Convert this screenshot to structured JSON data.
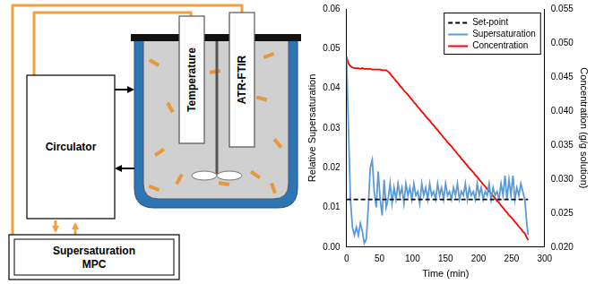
{
  "chart_data": {
    "type": "line",
    "x_label": "Time (min)",
    "y_label": "Relative Supersaturation",
    "y2_label": "Concentration (g/g solution)",
    "x": [
      0,
      3,
      6,
      9,
      12,
      15,
      18,
      21,
      24,
      27,
      30,
      33,
      36,
      39,
      42,
      45,
      48,
      51,
      54,
      57,
      60,
      63,
      66,
      69,
      72,
      75,
      78,
      81,
      84,
      87,
      90,
      93,
      96,
      99,
      102,
      105,
      108,
      111,
      114,
      117,
      120,
      123,
      126,
      129,
      132,
      135,
      138,
      141,
      144,
      147,
      150,
      153,
      156,
      159,
      162,
      165,
      168,
      171,
      174,
      177,
      180,
      183,
      186,
      189,
      192,
      195,
      198,
      201,
      204,
      207,
      210,
      213,
      216,
      219,
      222,
      225,
      228,
      231,
      234,
      237,
      240,
      243,
      246,
      249,
      252,
      255,
      258,
      261,
      264,
      267,
      270,
      273,
      275
    ],
    "xlim": [
      0,
      300
    ],
    "xticks": [
      0,
      50,
      100,
      150,
      200,
      250,
      300
    ],
    "ylim": [
      0,
      0.06
    ],
    "yticks": [
      {
        "value": 0,
        "label": "0.00"
      },
      {
        "value": 0.01,
        "label": "0.01"
      },
      {
        "value": 0.02,
        "label": "0.02"
      },
      {
        "value": 0.03,
        "label": "0.03"
      },
      {
        "value": 0.04,
        "label": "0.04"
      },
      {
        "value": 0.05,
        "label": "0.05"
      },
      {
        "value": 0.06,
        "label": "0.06"
      }
    ],
    "y2lim": [
      0.02,
      0.055
    ],
    "y2ticks": [
      {
        "value": 0.02,
        "label": "0.020"
      },
      {
        "value": 0.025,
        "label": "0.025"
      },
      {
        "value": 0.03,
        "label": "0.030"
      },
      {
        "value": 0.035,
        "label": "0.035"
      },
      {
        "value": 0.04,
        "label": "0.040"
      },
      {
        "value": 0.045,
        "label": "0.045"
      },
      {
        "value": 0.05,
        "label": "0.050"
      },
      {
        "value": 0.055,
        "label": "0.055"
      }
    ],
    "grid": false,
    "legend": "top-right",
    "series": [
      {
        "name": "Set-point",
        "color": "#000000",
        "line_style": "dashed",
        "values": [
          0.012,
          0.012,
          0.012,
          0.012,
          0.012,
          0.012,
          0.012,
          0.012,
          0.012,
          0.012,
          0.012,
          0.012,
          0.012,
          0.012,
          0.012,
          0.012,
          0.012,
          0.012,
          0.012,
          0.012,
          0.012,
          0.012,
          0.012,
          0.012,
          0.012,
          0.012,
          0.012,
          0.012,
          0.012,
          0.012,
          0.012,
          0.012,
          0.012,
          0.012,
          0.012,
          0.012,
          0.012,
          0.012,
          0.012,
          0.012,
          0.012,
          0.012,
          0.012,
          0.012,
          0.012,
          0.012,
          0.012,
          0.012,
          0.012,
          0.012,
          0.012,
          0.012,
          0.012,
          0.012,
          0.012,
          0.012,
          0.012,
          0.012,
          0.012,
          0.012,
          0.012,
          0.012,
          0.012,
          0.012,
          0.012,
          0.012,
          0.012,
          0.012,
          0.012,
          0.012,
          0.012,
          0.012,
          0.012,
          0.012,
          0.012,
          0.012,
          0.012,
          0.012,
          0.012,
          0.012,
          0.012,
          0.012,
          0.012,
          0.012,
          0.012,
          0.012,
          0.012,
          0.012,
          0.012,
          0.012,
          0.012,
          0.012,
          0.012
        ]
      },
      {
        "name": "Supersaturation",
        "color": "#5b9bd5",
        "line_style": "solid",
        "values": [
          0.048,
          0.03,
          0.012,
          0.005,
          0.003,
          0.005,
          0.003,
          0.006,
          0.004,
          0.001,
          0.002,
          0.01,
          0.02,
          0.022,
          0.014,
          0.01,
          0.019,
          0.012,
          0.008,
          0.017,
          0.01,
          0.012,
          0.016,
          0.011,
          0.015,
          0.012,
          0.016,
          0.013,
          0.015,
          0.011,
          0.016,
          0.013,
          0.015,
          0.012,
          0.016,
          0.013,
          0.014,
          0.011,
          0.016,
          0.013,
          0.015,
          0.012,
          0.016,
          0.013,
          0.014,
          0.012,
          0.016,
          0.013,
          0.015,
          0.012,
          0.016,
          0.013,
          0.014,
          0.012,
          0.015,
          0.013,
          0.016,
          0.012,
          0.014,
          0.013,
          0.016,
          0.012,
          0.015,
          0.013,
          0.014,
          0.012,
          0.016,
          0.013,
          0.015,
          0.012,
          0.014,
          0.013,
          0.016,
          0.012,
          0.015,
          0.013,
          0.014,
          0.012,
          0.016,
          0.013,
          0.018,
          0.012,
          0.017,
          0.013,
          0.018,
          0.012,
          0.015,
          0.013,
          0.016,
          0.014,
          0.012,
          0.006,
          0.003
        ]
      },
      {
        "name": "Concentration",
        "color": "#ff0000",
        "line_style": "solid",
        "axis": "y2",
        "values": [
          0.048,
          0.047,
          0.0466,
          0.0464,
          0.0463,
          0.0463,
          0.0463,
          0.0462,
          0.0463,
          0.0462,
          0.0462,
          0.0462,
          0.0462,
          0.0461,
          0.0461,
          0.0461,
          0.0461,
          0.0461,
          0.046,
          0.046,
          0.046,
          0.0458,
          0.0455,
          0.0451,
          0.0448,
          0.0444,
          0.0441,
          0.0437,
          0.0434,
          0.043,
          0.0427,
          0.0424,
          0.042,
          0.0417,
          0.0413,
          0.041,
          0.0406,
          0.0403,
          0.0399,
          0.0396,
          0.0392,
          0.0389,
          0.0386,
          0.0382,
          0.0379,
          0.0375,
          0.0372,
          0.0368,
          0.0365,
          0.0361,
          0.0358,
          0.0354,
          0.0351,
          0.0348,
          0.0344,
          0.0341,
          0.0337,
          0.0334,
          0.033,
          0.0327,
          0.0323,
          0.032,
          0.0316,
          0.0313,
          0.031,
          0.0306,
          0.0303,
          0.0299,
          0.0296,
          0.0292,
          0.0289,
          0.0285,
          0.0282,
          0.0279,
          0.0275,
          0.0272,
          0.0268,
          0.0265,
          0.0261,
          0.0258,
          0.0254,
          0.0251,
          0.0247,
          0.0244,
          0.0241,
          0.0237,
          0.0234,
          0.023,
          0.0227,
          0.0223,
          0.022,
          0.0214,
          0.021
        ]
      }
    ]
  },
  "diagram": {
    "circulator": "Circulator",
    "controller": [
      "Supersaturation",
      "MPC"
    ],
    "probes": [
      "Temperature",
      "ATR-FTIR"
    ]
  }
}
